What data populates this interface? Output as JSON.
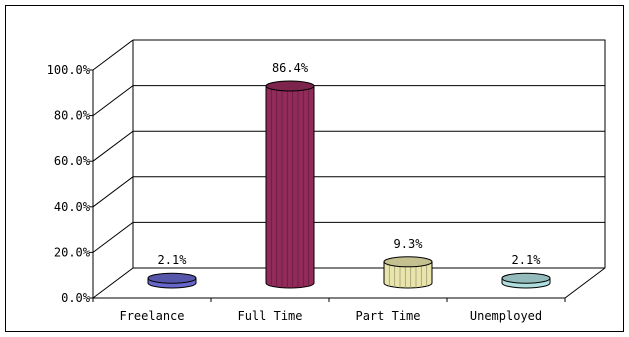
{
  "chart_data": {
    "type": "bar",
    "title": "",
    "xlabel": "",
    "ylabel": "",
    "categories": [
      "Freelance",
      "Full Time",
      "Part Time",
      "Unemployed"
    ],
    "values": [
      2.1,
      86.4,
      9.3,
      2.1
    ],
    "data_labels": [
      "2.1%",
      "86.4%",
      "9.3%",
      "2.1%"
    ],
    "ylim": [
      0,
      100
    ],
    "y_ticks": [
      "0.0%",
      "20.0%",
      "40.0%",
      "60.0%",
      "80.0%",
      "100.0%"
    ],
    "grid": true,
    "legend": "none",
    "style": "3d cylinder",
    "colors": {
      "Freelance": "#6b6bd6",
      "Full Time": "#9b2d5f",
      "Part Time": "#f5f0b4",
      "Unemployed": "#b8eaea"
    }
  }
}
